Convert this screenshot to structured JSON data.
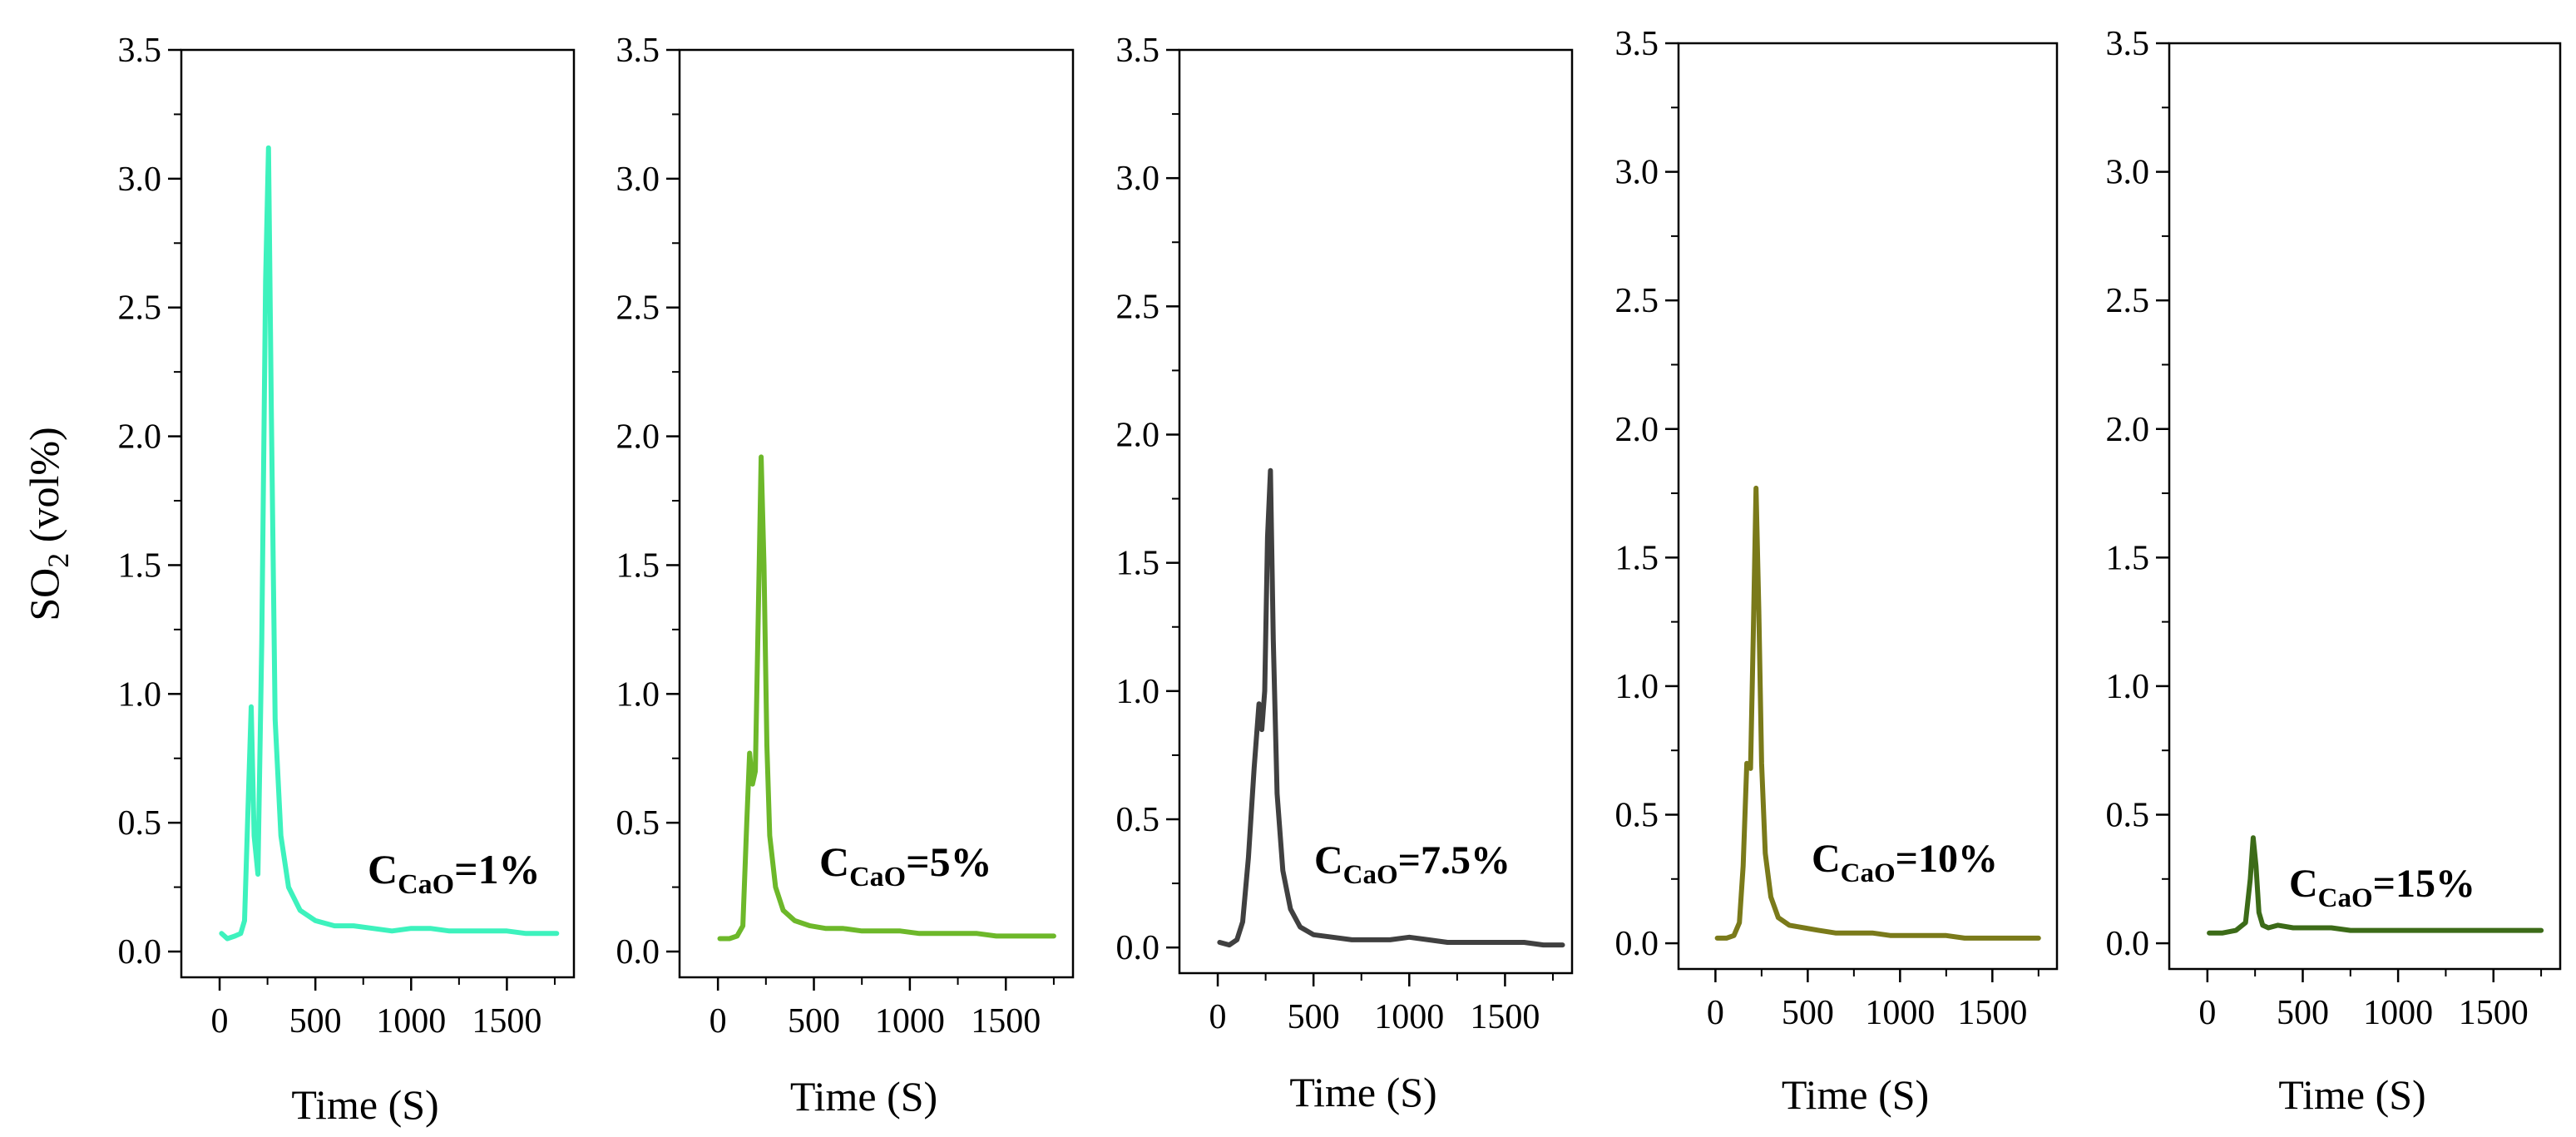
{
  "chart_data": [
    {
      "type": "line",
      "ylabel_main": "SO",
      "ylabel_sub": "2",
      "ylabel_tail": " (vol%)",
      "xlabel": "Time (S)",
      "xlim": [
        -200,
        1850
      ],
      "ylim": [
        -0.1,
        3.5
      ],
      "xticks": [
        0,
        500,
        1000,
        1500
      ],
      "xtick_labels": [
        "0",
        "500",
        "1000",
        "1500"
      ],
      "yticks": [
        0.0,
        0.5,
        1.0,
        1.5,
        2.0,
        2.5,
        3.0,
        3.5
      ],
      "ytick_labels": [
        "0.0",
        "0.5",
        "1.0",
        "1.5",
        "2.0",
        "2.5",
        "3.0",
        "3.5"
      ],
      "annotation": {
        "main": "C",
        "sub": "CaO",
        "tail": "=1%"
      },
      "color": "#3df2bd",
      "series": [
        {
          "name": "CCaO=1%",
          "x": [
            10,
            40,
            80,
            110,
            130,
            150,
            165,
            180,
            200,
            220,
            240,
            255,
            270,
            290,
            320,
            360,
            420,
            500,
            600,
            700,
            800,
            900,
            1000,
            1100,
            1200,
            1300,
            1400,
            1500,
            1600,
            1700,
            1760
          ],
          "y": [
            0.07,
            0.05,
            0.06,
            0.07,
            0.12,
            0.6,
            0.95,
            0.45,
            0.3,
            1.2,
            2.6,
            3.12,
            2.1,
            0.9,
            0.45,
            0.25,
            0.16,
            0.12,
            0.1,
            0.1,
            0.09,
            0.08,
            0.09,
            0.09,
            0.08,
            0.08,
            0.08,
            0.08,
            0.07,
            0.07,
            0.07
          ]
        }
      ]
    },
    {
      "type": "line",
      "xlabel": "Time (S)",
      "xlim": [
        -200,
        1850
      ],
      "ylim": [
        -0.1,
        3.5
      ],
      "xticks": [
        0,
        500,
        1000,
        1500
      ],
      "xtick_labels": [
        "0",
        "500",
        "1000",
        "1500"
      ],
      "yticks": [
        0.0,
        0.5,
        1.0,
        1.5,
        2.0,
        2.5,
        3.0,
        3.5
      ],
      "ytick_labels": [
        "0.0",
        "0.5",
        "1.0",
        "1.5",
        "2.0",
        "2.5",
        "3.0",
        "3.5"
      ],
      "annotation": {
        "main": "C",
        "sub": "CaO",
        "tail": "=5%"
      },
      "color": "#6db82a",
      "series": [
        {
          "name": "CCaO=5%",
          "x": [
            10,
            60,
            100,
            130,
            150,
            165,
            180,
            195,
            210,
            225,
            240,
            255,
            270,
            300,
            340,
            400,
            480,
            560,
            650,
            750,
            850,
            950,
            1050,
            1150,
            1250,
            1350,
            1450,
            1550,
            1650,
            1750
          ],
          "y": [
            0.05,
            0.05,
            0.06,
            0.1,
            0.5,
            0.77,
            0.65,
            0.7,
            1.3,
            1.92,
            1.5,
            0.8,
            0.45,
            0.25,
            0.16,
            0.12,
            0.1,
            0.09,
            0.09,
            0.08,
            0.08,
            0.08,
            0.07,
            0.07,
            0.07,
            0.07,
            0.06,
            0.06,
            0.06,
            0.06
          ]
        }
      ]
    },
    {
      "type": "line",
      "xlabel": "Time (S)",
      "xlim": [
        -200,
        1850
      ],
      "ylim": [
        -0.1,
        3.5
      ],
      "xticks": [
        0,
        500,
        1000,
        1500
      ],
      "xtick_labels": [
        "0",
        "500",
        "1000",
        "1500"
      ],
      "yticks": [
        0.0,
        0.5,
        1.0,
        1.5,
        2.0,
        2.5,
        3.0,
        3.5
      ],
      "ytick_labels": [
        "0.0",
        "0.5",
        "1.0",
        "1.5",
        "2.0",
        "2.5",
        "3.0",
        "3.5"
      ],
      "annotation": {
        "main": "C",
        "sub": "CaO",
        "tail": "=7.5%"
      },
      "color": "#404040",
      "series": [
        {
          "name": "CCaO=7.5%",
          "x": [
            10,
            60,
            100,
            130,
            160,
            190,
            215,
            230,
            245,
            260,
            275,
            290,
            310,
            340,
            380,
            430,
            500,
            600,
            700,
            800,
            900,
            1000,
            1100,
            1200,
            1300,
            1400,
            1500,
            1600,
            1700,
            1800
          ],
          "y": [
            0.02,
            0.01,
            0.03,
            0.1,
            0.35,
            0.7,
            0.95,
            0.85,
            1.0,
            1.6,
            1.86,
            1.2,
            0.6,
            0.3,
            0.15,
            0.08,
            0.05,
            0.04,
            0.03,
            0.03,
            0.03,
            0.04,
            0.03,
            0.02,
            0.02,
            0.02,
            0.02,
            0.02,
            0.01,
            0.01
          ]
        }
      ]
    },
    {
      "type": "line",
      "xlabel": "Time (S)",
      "xlim": [
        -200,
        1850
      ],
      "ylim": [
        -0.1,
        3.5
      ],
      "xticks": [
        0,
        500,
        1000,
        1500
      ],
      "xtick_labels": [
        "0",
        "500",
        "1000",
        "1500"
      ],
      "yticks": [
        0.0,
        0.5,
        1.0,
        1.5,
        2.0,
        2.5,
        3.0,
        3.5
      ],
      "ytick_labels": [
        "0.0",
        "0.5",
        "1.0",
        "1.5",
        "2.0",
        "2.5",
        "3.0",
        "3.5"
      ],
      "annotation": {
        "main": "C",
        "sub": "CaO",
        "tail": "=10%"
      },
      "color": "#7a7a1a",
      "series": [
        {
          "name": "CCaO=10%",
          "x": [
            10,
            60,
            100,
            130,
            150,
            170,
            190,
            205,
            220,
            235,
            250,
            270,
            300,
            340,
            400,
            480,
            560,
            650,
            750,
            850,
            950,
            1050,
            1150,
            1250,
            1350,
            1450,
            1550,
            1650,
            1750
          ],
          "y": [
            0.02,
            0.02,
            0.03,
            0.08,
            0.3,
            0.7,
            0.68,
            1.2,
            1.77,
            1.3,
            0.7,
            0.35,
            0.18,
            0.1,
            0.07,
            0.06,
            0.05,
            0.04,
            0.04,
            0.04,
            0.03,
            0.03,
            0.03,
            0.03,
            0.02,
            0.02,
            0.02,
            0.02,
            0.02
          ]
        }
      ]
    },
    {
      "type": "line",
      "xlabel": "Time (S)",
      "xlim": [
        -200,
        1850
      ],
      "ylim": [
        -0.1,
        3.5
      ],
      "xticks": [
        0,
        500,
        1000,
        1500
      ],
      "xtick_labels": [
        "0",
        "500",
        "1000",
        "1500"
      ],
      "yticks": [
        0.0,
        0.5,
        1.0,
        1.5,
        2.0,
        2.5,
        3.0,
        3.5
      ],
      "ytick_labels": [
        "0.0",
        "0.5",
        "1.0",
        "1.5",
        "2.0",
        "2.5",
        "3.0",
        "3.5"
      ],
      "annotation": {
        "main": "C",
        "sub": "CaO",
        "tail": "=15%"
      },
      "color": "#3c6b18",
      "series": [
        {
          "name": "CCaO=15%",
          "x": [
            10,
            80,
            150,
            200,
            225,
            240,
            255,
            270,
            290,
            320,
            370,
            450,
            550,
            650,
            750,
            850,
            950,
            1050,
            1150,
            1250,
            1350,
            1450,
            1550,
            1650,
            1750
          ],
          "y": [
            0.04,
            0.04,
            0.05,
            0.08,
            0.25,
            0.41,
            0.3,
            0.12,
            0.07,
            0.06,
            0.07,
            0.06,
            0.06,
            0.06,
            0.05,
            0.05,
            0.05,
            0.05,
            0.05,
            0.05,
            0.05,
            0.05,
            0.05,
            0.05,
            0.05
          ]
        }
      ]
    }
  ]
}
